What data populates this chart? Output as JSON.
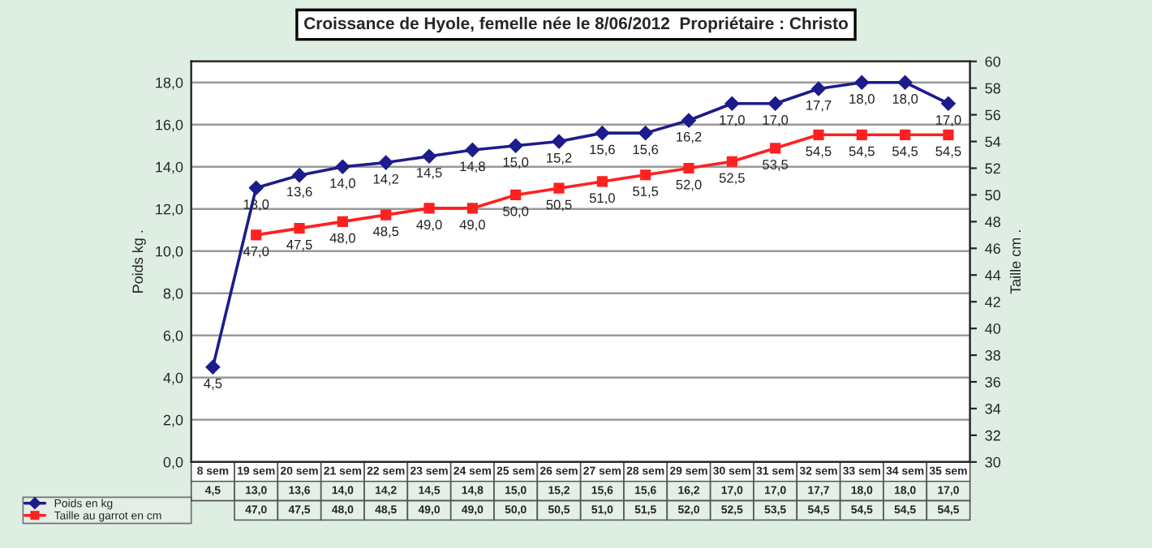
{
  "chart_data": {
    "type": "line",
    "title": "Croissance de Hyole, femelle née le 8/06/2012  Propriétaire : Christo",
    "ylabel": "Poids kg .",
    "y2label": "Taille cm .",
    "categories": [
      "8 sem",
      "19 sem",
      "20 sem",
      "21 sem",
      "22 sem",
      "23 sem",
      "24 sem",
      "25 sem",
      "26 sem",
      "27 sem",
      "28 sem",
      "29 sem",
      "30 sem",
      "31 sem",
      "32 sem",
      "33 sem",
      "34 sem",
      "35 sem"
    ],
    "series": [
      {
        "name": "Poids en kg",
        "color": "#1c1c8c",
        "marker": "diamond",
        "values": [
          4.5,
          13.0,
          13.6,
          14.0,
          14.2,
          14.5,
          14.8,
          15.0,
          15.2,
          15.6,
          15.6,
          16.2,
          17.0,
          17.0,
          17.7,
          18.0,
          18.0,
          17.0
        ],
        "value_labels": [
          "4,5",
          "13,0",
          "13,6",
          "14,0",
          "14,2",
          "14,5",
          "14,8",
          "15,0",
          "15,2",
          "15,6",
          "15,6",
          "16,2",
          "17,0",
          "17,0",
          "17,7",
          "18,0",
          "18,0",
          "17,0"
        ]
      },
      {
        "name": "Taille au garrot en cm",
        "color": "#ff2020",
        "marker": "square",
        "axis": "y2",
        "values": [
          null,
          47.0,
          47.5,
          48.0,
          48.5,
          49.0,
          49.0,
          50.0,
          50.5,
          51.0,
          51.5,
          52.0,
          52.5,
          53.5,
          54.5,
          54.5,
          54.5,
          54.5
        ],
        "value_labels": [
          null,
          "47,0",
          "47,5",
          "48,0",
          "48,5",
          "49,0",
          "49,0",
          "50,0",
          "50,5",
          "51,0",
          "51,5",
          "52,0",
          "52,5",
          "53,5",
          "54,5",
          "54,5",
          "54,5",
          "54,5"
        ]
      }
    ],
    "ylim": [
      0,
      19
    ],
    "yticks": [
      {
        "value": 0,
        "label": "0,0"
      },
      {
        "value": 2,
        "label": "2,0"
      },
      {
        "value": 4,
        "label": "4,0"
      },
      {
        "value": 6,
        "label": "6,0"
      },
      {
        "value": 8,
        "label": "8,0"
      },
      {
        "value": 10,
        "label": "10,0"
      },
      {
        "value": 12,
        "label": "12,0"
      },
      {
        "value": 14,
        "label": "14,0"
      },
      {
        "value": 16,
        "label": "16,0"
      },
      {
        "value": 18,
        "label": "18,0"
      }
    ],
    "y2lim": [
      30,
      60
    ],
    "y2ticks": [
      30,
      32,
      34,
      36,
      38,
      40,
      42,
      44,
      46,
      48,
      50,
      52,
      54,
      56,
      58,
      60
    ],
    "grid": "y",
    "legend": "bottom left",
    "line_style": "solid"
  }
}
